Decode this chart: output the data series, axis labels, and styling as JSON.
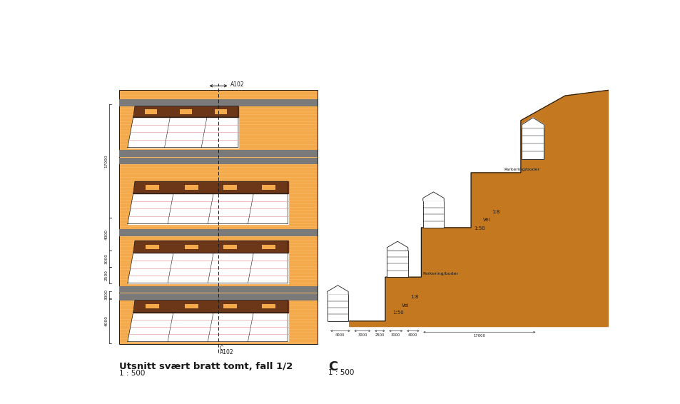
{
  "bg": "#ffffff",
  "orange": "#F4A94A",
  "orange_stripe": "#F8BE72",
  "brown": "#6B3718",
  "gray": "#7A7A7A",
  "white": "#ffffff",
  "pink": "#E8A0A0",
  "dark": "#1A1A1A",
  "orange_dark": "#C47820",
  "left_title": "Utsnitt svært bratt tomt, fall 1/2",
  "left_scale": "1 : 500",
  "right_label": "C",
  "right_scale": "1 : 500",
  "ref_top": "A102",
  "ref_bot_1": "C",
  "ref_bot_2": "A102"
}
